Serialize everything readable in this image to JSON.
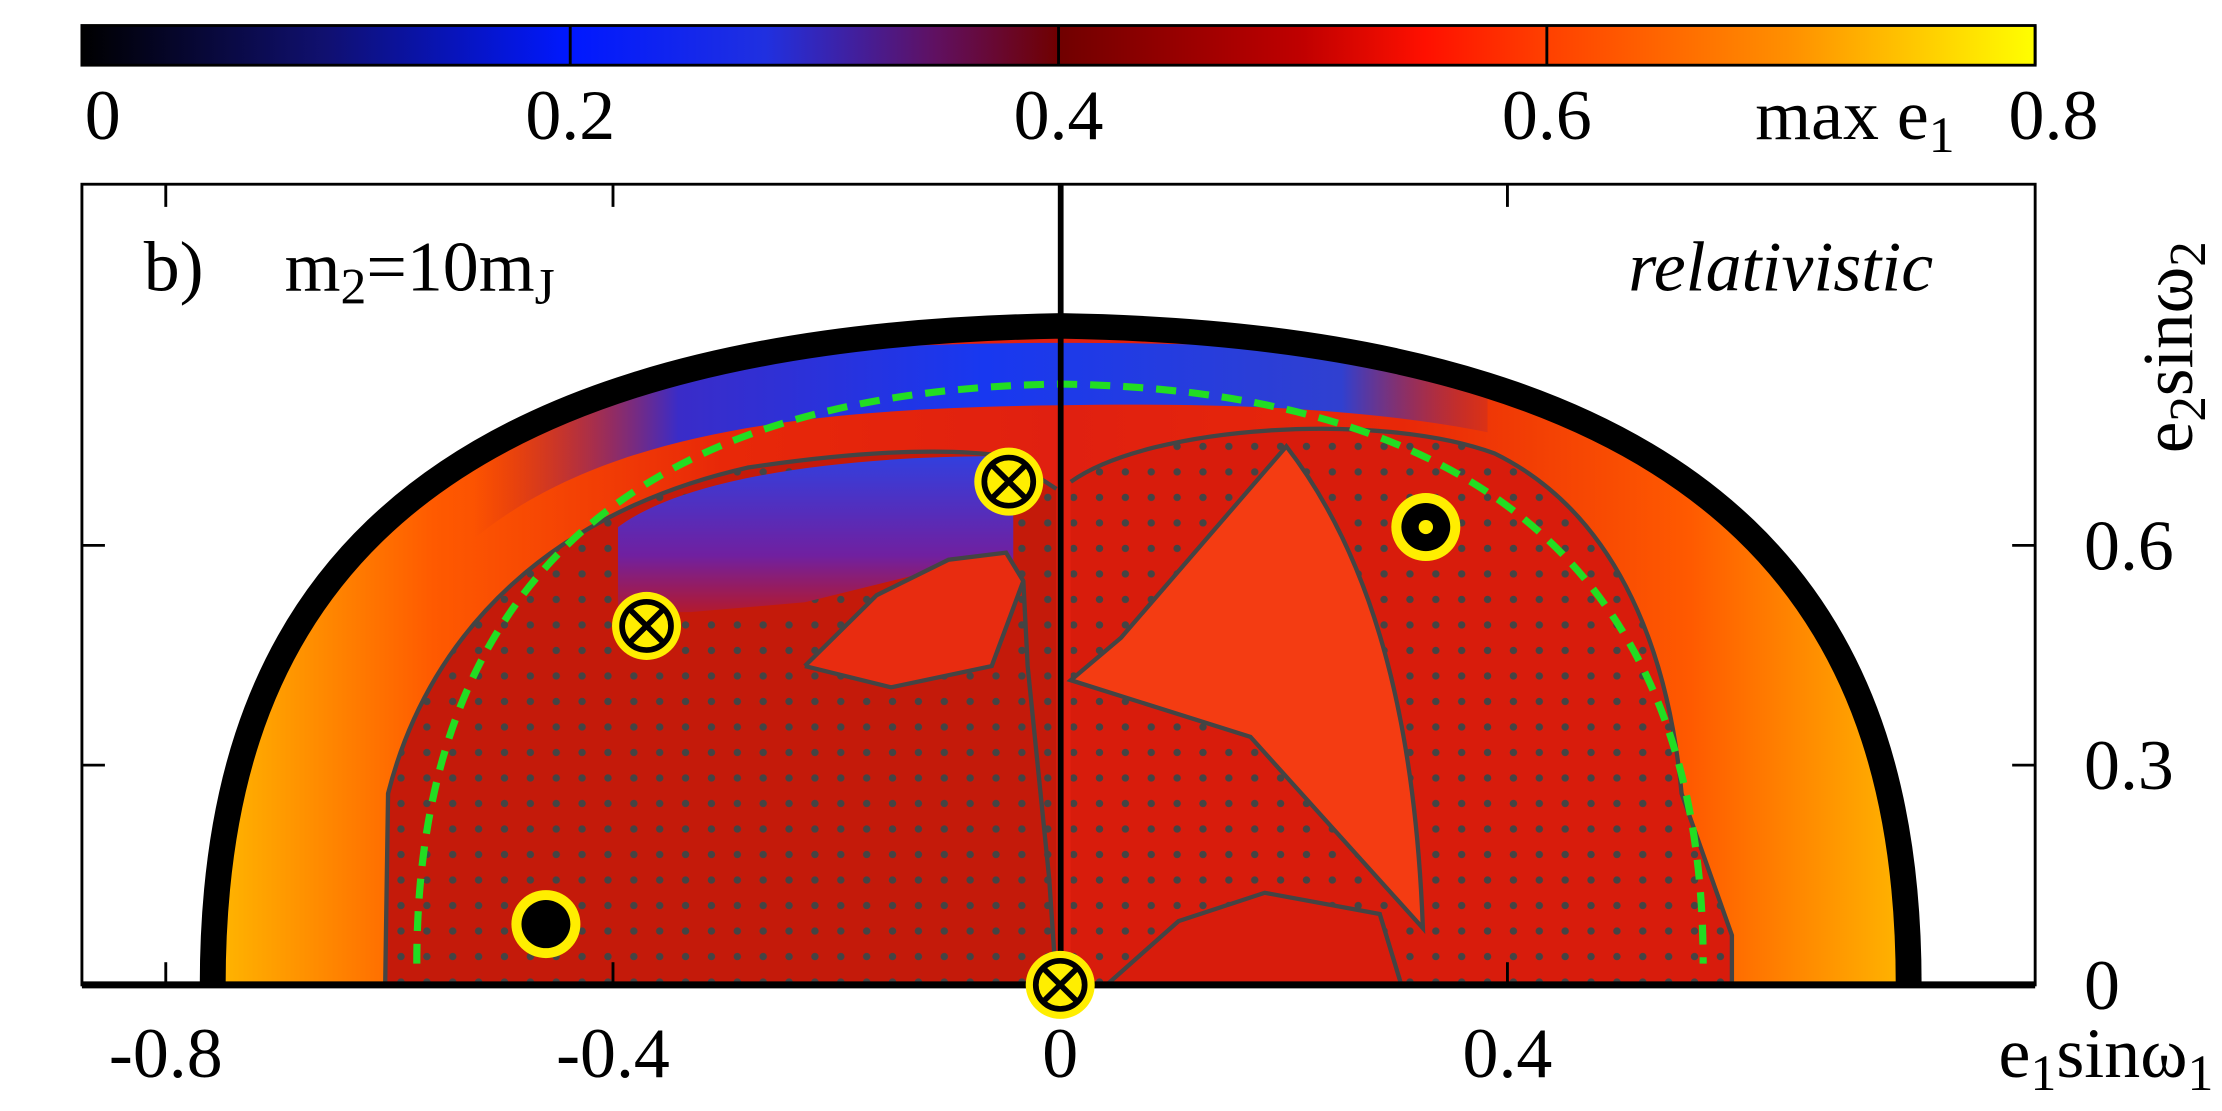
{
  "chart_data": {
    "type": "scatter",
    "panel_label": "b)",
    "annotation": [
      {
        "text": "m"
      },
      {
        "text": "2",
        "sub": true
      },
      {
        "text": "=10m"
      },
      {
        "text": "J",
        "sub": true
      }
    ],
    "corner_label": "relativistic",
    "xlabel": [
      {
        "text": "e"
      },
      {
        "text": "1",
        "sub": true
      },
      {
        "text": "sinω"
      },
      {
        "text": "1",
        "sub": true
      }
    ],
    "ylabel": [
      {
        "text": "e"
      },
      {
        "text": "2",
        "sub": true
      },
      {
        "text": "sinω"
      },
      {
        "text": "2",
        "sub": true
      }
    ],
    "xlim": [
      -0.875,
      0.872
    ],
    "ylim": [
      0,
      1.093
    ],
    "xticks": [
      -0.8,
      -0.4,
      0,
      0.4
    ],
    "yticks": [
      0,
      0.3,
      0.6
    ],
    "marker_color": "#ffee00",
    "points": [
      {
        "x": -0.46,
        "y": 0.083,
        "symbol": "filled"
      },
      {
        "x": -0.37,
        "y": 0.49,
        "symbol": "cross"
      },
      {
        "x": -0.046,
        "y": 0.687,
        "symbol": "cross"
      },
      {
        "x": 0.327,
        "y": 0.625,
        "symbol": "dot"
      },
      {
        "x": 0,
        "y": 0,
        "symbol": "cross"
      }
    ],
    "colorbar": {
      "label": [
        {
          "text": "max e"
        },
        {
          "text": "1",
          "sub": true
        }
      ],
      "lim": [
        0,
        0.8
      ],
      "ticks": [
        0,
        0.2,
        0.4,
        0.6,
        0.8
      ],
      "colormap": [
        [
          0,
          "#000000"
        ],
        [
          0.1,
          "#101070"
        ],
        [
          0.2,
          "#0018ff"
        ],
        [
          0.28,
          "#2030e0"
        ],
        [
          0.35,
          "#601060"
        ],
        [
          0.4,
          "#700000"
        ],
        [
          0.5,
          "#c00000"
        ],
        [
          0.55,
          "#ff1000"
        ],
        [
          0.6,
          "#ff4000"
        ],
        [
          0.7,
          "#ff9000"
        ],
        [
          0.8,
          "#ffff00"
        ]
      ]
    }
  }
}
